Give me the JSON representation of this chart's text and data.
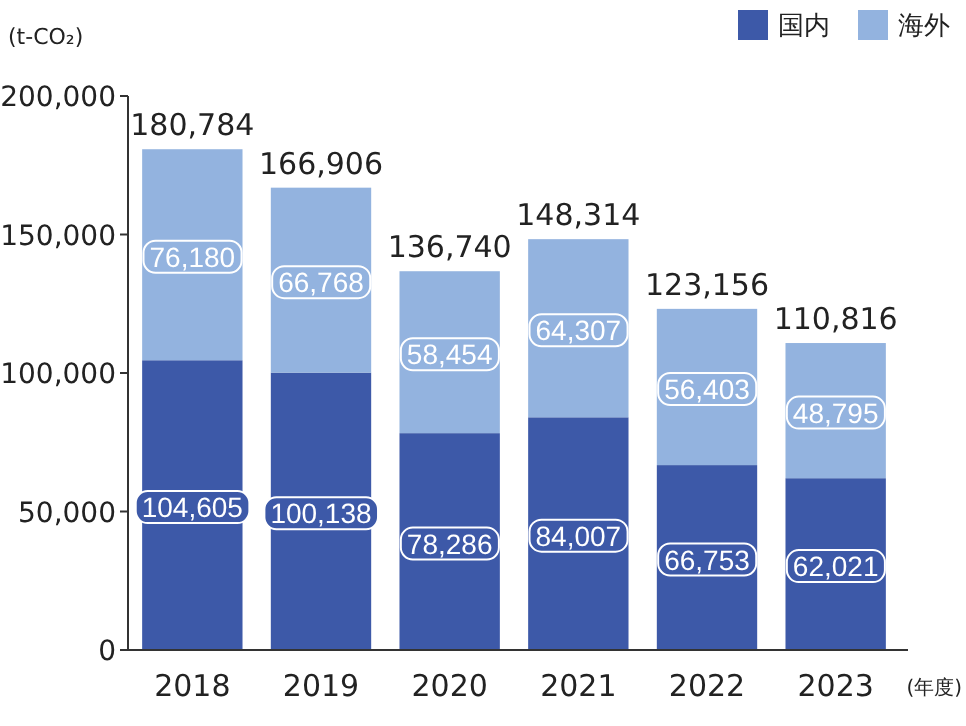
{
  "chart_data": {
    "type": "bar",
    "stacked": true,
    "ylabel": "(t-CO₂)",
    "xlabel": "(年度)",
    "categories": [
      "2018",
      "2019",
      "2020",
      "2021",
      "2022",
      "2023"
    ],
    "series": [
      {
        "name": "国内",
        "color": "#3d59a8",
        "values": [
          104605,
          100138,
          78286,
          84007,
          66753,
          62021
        ],
        "value_labels": [
          "104,605",
          "100,138",
          "78,286",
          "84,007",
          "66,753",
          "62,021"
        ]
      },
      {
        "name": "海外",
        "color": "#93b3df",
        "values": [
          76180,
          66768,
          58454,
          64307,
          56403,
          48795
        ],
        "value_labels": [
          "76,180",
          "66,768",
          "58,454",
          "64,307",
          "56,403",
          "48,795"
        ]
      }
    ],
    "totals": [
      "180,784",
      "166,906",
      "136,740",
      "148,314",
      "123,156",
      "110,816"
    ],
    "ylim": [
      0,
      200000
    ],
    "yticks": [
      0,
      {
        "value": 50000,
        "label": "50,000"
      },
      {
        "value": 100000,
        "label": "100,000"
      },
      {
        "value": 150000,
        "label": "150,000"
      },
      {
        "value": 200000,
        "label": "200,000"
      }
    ],
    "grid": false,
    "legend": "top right"
  }
}
